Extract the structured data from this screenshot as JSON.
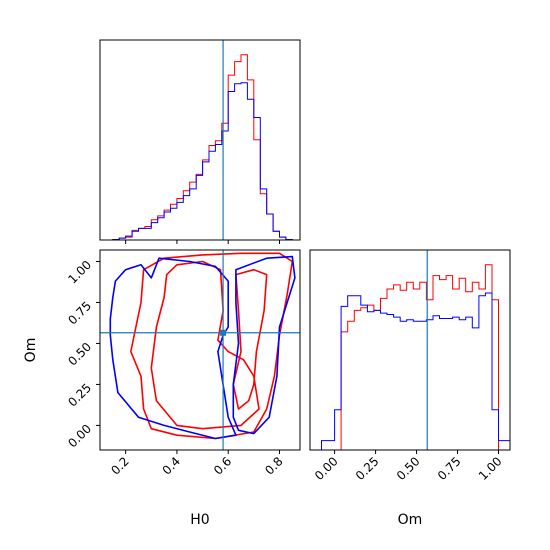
{
  "chart_data": {
    "type": "corner",
    "colors": {
      "sample_a": "#ff0000",
      "sample_b": "#0000ff",
      "truth": "#1f77b4"
    },
    "parameters": [
      "H0",
      "Om"
    ],
    "truths": {
      "H0": 0.58,
      "Om": 0.565
    },
    "panels": [
      {
        "id": "H0-marginal",
        "type": "histogram",
        "x_range": [
          0.1,
          0.88
        ],
        "bin_edges": [
          0.15,
          0.175,
          0.2,
          0.225,
          0.25,
          0.275,
          0.3,
          0.325,
          0.35,
          0.375,
          0.4,
          0.425,
          0.45,
          0.475,
          0.5,
          0.525,
          0.55,
          0.575,
          0.6,
          0.625,
          0.65,
          0.675,
          0.7,
          0.725,
          0.75,
          0.775,
          0.8,
          0.825,
          0.85
        ],
        "series": [
          {
            "name": "",
            "color": "#ff0000",
            "counts": [
              0.5,
              2,
              3,
              10,
              12,
              14,
              21,
              25,
              31,
              37,
              43,
              51,
              60,
              68,
              83,
              98,
              103,
              121,
              171,
              185,
              192,
              166,
              104,
              48,
              27,
              9,
              3,
              0.5
            ]
          },
          {
            "name": "",
            "color": "#0000ff",
            "counts": [
              0.5,
              2,
              4,
              9,
              12,
              12,
              18,
              23,
              29,
              33,
              39,
              46,
              53,
              67,
              81,
              92,
              99,
              113,
              154,
              162,
              163,
              146,
              127,
              53,
              27,
              9,
              3,
              0.5
            ]
          }
        ]
      },
      {
        "id": "Om-marginal",
        "type": "histogram",
        "x_range": [
          -0.15,
          1.07
        ],
        "xlabel": "Om",
        "xticks": [
          "0.00",
          "0.25",
          "0.50",
          "0.75",
          "1.00"
        ],
        "bin_edges": [
          -0.08,
          0.0,
          0.04,
          0.08,
          0.12,
          0.16,
          0.2,
          0.24,
          0.28,
          0.32,
          0.36,
          0.4,
          0.44,
          0.48,
          0.52,
          0.56,
          0.6,
          0.64,
          0.68,
          0.72,
          0.76,
          0.8,
          0.84,
          0.88,
          0.92,
          0.96,
          1.0,
          1.07
        ],
        "series": [
          {
            "name": "",
            "color": "#ff0000",
            "counts": [
              0,
              0,
              88,
              96,
              104,
              106,
              108,
              104,
              113,
              120,
              123,
              119,
              125,
              120,
              125,
              112,
              130,
              127,
              130,
              120,
              128,
              118,
              125,
              120,
              138,
              112,
              0
            ]
          },
          {
            "name": "",
            "color": "#0000ff",
            "counts": [
              7,
              30,
              107,
              115,
              115,
              108,
              103,
              104,
              102,
              101,
              99,
              96,
              97,
              96,
              96,
              97,
              100,
              98,
              98,
              99,
              97,
              99,
              91,
              115,
              117,
              30,
              7
            ]
          }
        ]
      },
      {
        "id": "H0-Om-joint",
        "type": "contour",
        "x_range": [
          0.1,
          0.88
        ],
        "y_range": [
          -0.15,
          1.07
        ],
        "xlabel": "H0",
        "ylabel": "Om",
        "xticks": [
          "0.2",
          "0.4",
          "0.6",
          "0.8"
        ],
        "yticks": [
          "0.00",
          "0.25",
          "0.50",
          "0.75",
          "1.00"
        ],
        "contours": [
          {
            "color": "#ff0000",
            "points": [
              [
                0.27,
                0.95
              ],
              [
                0.35,
                1.02
              ],
              [
                0.5,
                1.04
              ],
              [
                0.65,
                1.05
              ],
              [
                0.8,
                1.05
              ],
              [
                0.85,
                1.0
              ],
              [
                0.83,
                0.8
              ],
              [
                0.8,
                0.55
              ],
              [
                0.78,
                0.3
              ],
              [
                0.75,
                0.1
              ],
              [
                0.7,
                -0.04
              ],
              [
                0.55,
                -0.08
              ],
              [
                0.4,
                -0.06
              ],
              [
                0.3,
                -0.02
              ],
              [
                0.27,
                0.1
              ],
              [
                0.26,
                0.3
              ],
              [
                0.22,
                0.45
              ],
              [
                0.24,
                0.6
              ],
              [
                0.26,
                0.75
              ],
              [
                0.27,
                0.95
              ]
            ]
          },
          {
            "color": "#ff0000",
            "points": [
              [
                0.36,
                0.92
              ],
              [
                0.4,
                0.98
              ],
              [
                0.5,
                1.0
              ],
              [
                0.57,
                0.95
              ],
              [
                0.58,
                0.7
              ],
              [
                0.56,
                0.52
              ],
              [
                0.6,
                0.45
              ],
              [
                0.66,
                0.4
              ],
              [
                0.7,
                0.3
              ],
              [
                0.72,
                0.1
              ],
              [
                0.65,
                0.0
              ],
              [
                0.5,
                -0.02
              ],
              [
                0.4,
                0.0
              ],
              [
                0.32,
                0.15
              ],
              [
                0.3,
                0.35
              ],
              [
                0.32,
                0.6
              ],
              [
                0.35,
                0.78
              ],
              [
                0.36,
                0.92
              ]
            ]
          },
          {
            "color": "#ff0000",
            "points": [
              [
                0.63,
                0.92
              ],
              [
                0.7,
                0.95
              ],
              [
                0.75,
                0.92
              ],
              [
                0.74,
                0.7
              ],
              [
                0.71,
                0.45
              ],
              [
                0.7,
                0.25
              ],
              [
                0.68,
                0.15
              ],
              [
                0.64,
                0.1
              ],
              [
                0.62,
                0.25
              ],
              [
                0.65,
                0.45
              ],
              [
                0.64,
                0.7
              ],
              [
                0.63,
                0.92
              ]
            ]
          },
          {
            "color": "#0000ff",
            "points": [
              [
                0.16,
                0.88
              ],
              [
                0.2,
                0.95
              ],
              [
                0.26,
                0.98
              ],
              [
                0.3,
                0.9
              ],
              [
                0.33,
                1.02
              ],
              [
                0.45,
                1.0
              ],
              [
                0.55,
                0.97
              ],
              [
                0.6,
                0.88
              ],
              [
                0.6,
                0.6
              ],
              [
                0.58,
                0.55
              ],
              [
                0.56,
                0.45
              ],
              [
                0.6,
                0.05
              ],
              [
                0.63,
                -0.06
              ],
              [
                0.55,
                -0.08
              ],
              [
                0.45,
                -0.04
              ],
              [
                0.35,
                0.0
              ],
              [
                0.25,
                0.05
              ],
              [
                0.17,
                0.2
              ],
              [
                0.15,
                0.4
              ],
              [
                0.14,
                0.55
              ],
              [
                0.14,
                0.65
              ],
              [
                0.15,
                0.78
              ],
              [
                0.16,
                0.88
              ]
            ]
          },
          {
            "color": "#0000ff",
            "points": [
              [
                0.63,
                0.95
              ],
              [
                0.75,
                1.02
              ],
              [
                0.85,
                1.03
              ],
              [
                0.86,
                0.9
              ],
              [
                0.8,
                0.6
              ],
              [
                0.79,
                0.3
              ],
              [
                0.76,
                0.05
              ],
              [
                0.7,
                -0.05
              ],
              [
                0.64,
                -0.03
              ],
              [
                0.62,
                0.05
              ],
              [
                0.62,
                0.25
              ],
              [
                0.64,
                0.5
              ],
              [
                0.63,
                0.75
              ],
              [
                0.63,
                0.95
              ]
            ]
          }
        ]
      }
    ]
  }
}
